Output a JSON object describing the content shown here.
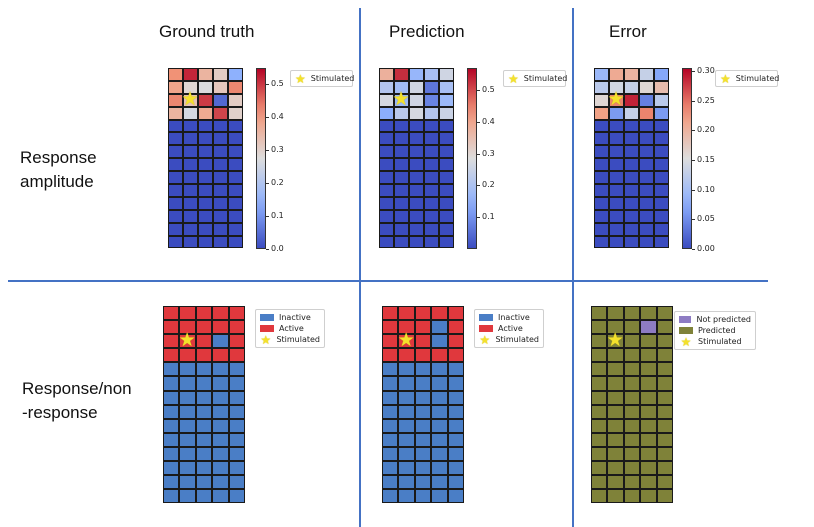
{
  "columns": [
    "Ground truth",
    "Prediction",
    "Error"
  ],
  "rows": [
    "Response\namplitude",
    "Response/non\n-response"
  ],
  "colors": {
    "divider": "#4472c4",
    "inactive": "#4a7ec6",
    "active": "#e0383d",
    "predicted": "#7f8239",
    "not_predicted": "#8e7cc3",
    "zero": "#3b4cc0",
    "star": "#f4e12c"
  },
  "amplitude": {
    "ground_truth": {
      "cells": [
        [
          0.42,
          0.52,
          0.36,
          0.31,
          0.14
        ],
        [
          0.39,
          0.29,
          0.27,
          0.32,
          0.43
        ],
        [
          0.43,
          0.33,
          0.5,
          0.04,
          0.31
        ],
        [
          0.36,
          0.26,
          0.38,
          0.49,
          0.3
        ]
      ],
      "stimulated_cell": [
        2,
        1
      ],
      "colorbar": {
        "min": 0.0,
        "max": 0.55,
        "ticks": [
          "0.0",
          "0.1",
          "0.2",
          "0.3",
          "0.4",
          "0.5"
        ]
      }
    },
    "prediction": {
      "cells": [
        [
          0.38,
          0.53,
          0.16,
          0.19,
          0.26
        ],
        [
          0.21,
          0.18,
          0.26,
          0.06,
          0.19
        ],
        [
          0.27,
          0.17,
          0.26,
          0.08,
          0.17
        ],
        [
          0.14,
          0.22,
          0.27,
          0.21,
          0.25
        ]
      ],
      "stimulated_cell": [
        2,
        1
      ],
      "colorbar": {
        "min": 0.0,
        "max": 0.57,
        "ticks": [
          "0.1",
          "0.2",
          "0.3",
          "0.4",
          "0.5"
        ]
      }
    },
    "error": {
      "cells": [
        [
          0.09,
          0.21,
          0.2,
          0.13,
          0.07
        ],
        [
          0.12,
          0.14,
          0.13,
          0.16,
          0.19
        ],
        [
          0.16,
          0.24,
          0.29,
          0.04,
          0.12
        ],
        [
          0.22,
          0.06,
          0.13,
          0.24,
          0.06
        ]
      ],
      "stimulated_cell": [
        2,
        1
      ],
      "colorbar": {
        "min": 0.0,
        "max": 0.305,
        "ticks": [
          "0.00",
          "0.05",
          "0.10",
          "0.15",
          "0.20",
          "0.25",
          "0.30"
        ]
      }
    },
    "legend": {
      "stimulated": "Stimulated"
    }
  },
  "binary": {
    "ground_truth": {
      "cells": [
        [
          "A",
          "A",
          "A",
          "A",
          "A"
        ],
        [
          "A",
          "A",
          "A",
          "A",
          "A"
        ],
        [
          "A",
          "A",
          "A",
          "I",
          "A"
        ],
        [
          "A",
          "A",
          "A",
          "A",
          "A"
        ]
      ],
      "stimulated_cell": [
        2,
        1
      ]
    },
    "prediction": {
      "cells": [
        [
          "A",
          "A",
          "A",
          "A",
          "A"
        ],
        [
          "A",
          "A",
          "A",
          "I",
          "A"
        ],
        [
          "A",
          "A",
          "A",
          "I",
          "A"
        ],
        [
          "A",
          "A",
          "A",
          "A",
          "A"
        ]
      ],
      "stimulated_cell": [
        2,
        1
      ]
    },
    "error": {
      "cells": [
        [
          "P",
          "P",
          "P",
          "P",
          "P"
        ],
        [
          "P",
          "P",
          "P",
          "N",
          "P"
        ],
        [
          "P",
          "P",
          "P",
          "P",
          "P"
        ],
        [
          "P",
          "P",
          "P",
          "P",
          "P"
        ]
      ],
      "stimulated_cell": [
        2,
        1
      ]
    },
    "legend": {
      "inactive": "Inactive",
      "active": "Active",
      "stimulated": "Stimulated",
      "not_predicted": "Not predicted",
      "predicted": "Predicted"
    }
  }
}
